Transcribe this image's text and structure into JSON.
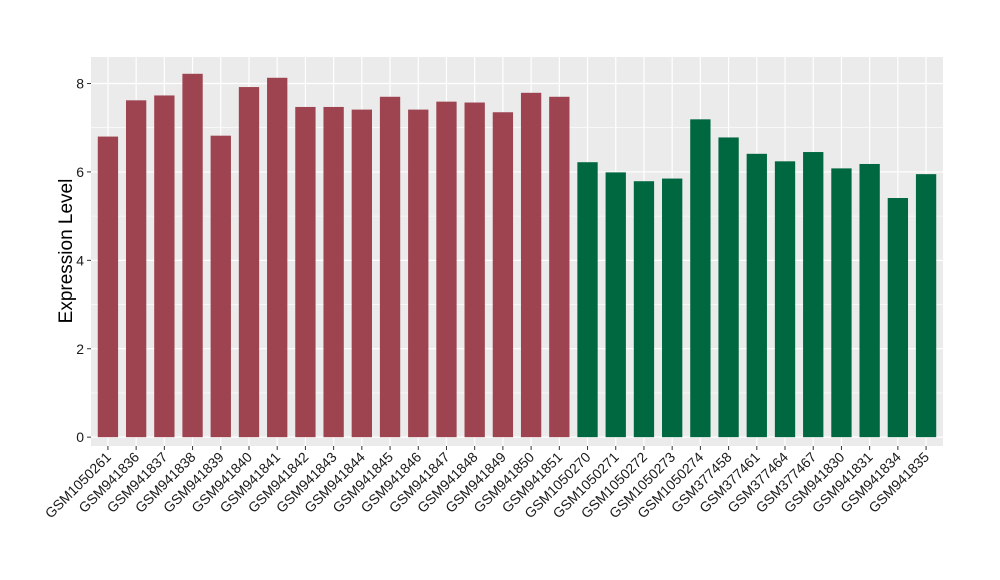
{
  "chart_data": {
    "type": "bar",
    "title": "",
    "xlabel": "",
    "ylabel": "Expression Level",
    "ylim": [
      -0.2,
      8.6
    ],
    "yticks": [
      0,
      2,
      4,
      6,
      8
    ],
    "grid": true,
    "categories": [
      "GSM1050261",
      "GSM941836",
      "GSM941837",
      "GSM941838",
      "GSM941839",
      "GSM941840",
      "GSM941841",
      "GSM941842",
      "GSM941843",
      "GSM941844",
      "GSM941845",
      "GSM941846",
      "GSM941847",
      "GSM941848",
      "GSM941849",
      "GSM941850",
      "GSM941851",
      "GSM1050270",
      "GSM1050271",
      "GSM1050272",
      "GSM1050273",
      "GSM1050274",
      "GSM377458",
      "GSM377461",
      "GSM377464",
      "GSM377467",
      "GSM941830",
      "GSM941831",
      "GSM941834",
      "GSM941835"
    ],
    "values": [
      6.8,
      7.62,
      7.73,
      8.22,
      6.82,
      7.92,
      8.13,
      7.47,
      7.47,
      7.41,
      7.7,
      7.41,
      7.59,
      7.57,
      7.35,
      7.79,
      7.7,
      6.22,
      5.99,
      5.79,
      5.85,
      7.19,
      6.78,
      6.41,
      6.24,
      6.45,
      6.08,
      6.18,
      5.41,
      5.95
    ],
    "group_of_bar": [
      0,
      0,
      0,
      0,
      0,
      0,
      0,
      0,
      0,
      0,
      0,
      0,
      0,
      0,
      0,
      0,
      0,
      1,
      1,
      1,
      1,
      1,
      1,
      1,
      1,
      1,
      1,
      1,
      1,
      1
    ],
    "colors": [
      "#9e4350",
      "#006840"
    ],
    "panel_background": "#ebebeb",
    "grid_color": "#ffffff"
  }
}
